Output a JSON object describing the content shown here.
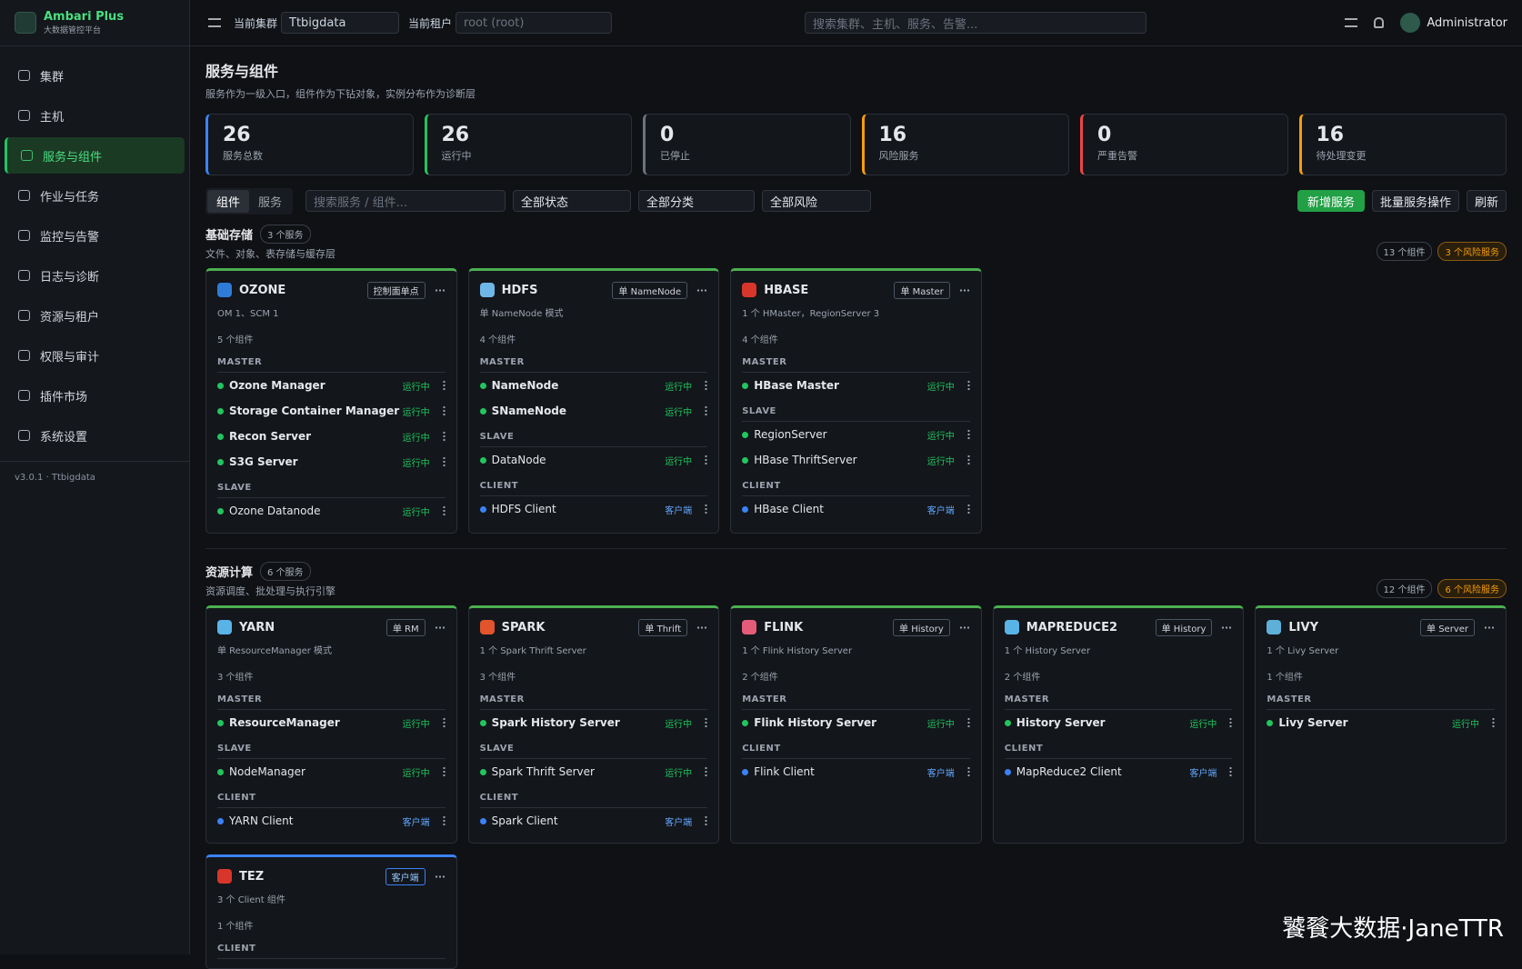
{
  "sidebar": {
    "brand": "Ambari Plus",
    "brand_sub": "大数据管控平台",
    "menu": [
      "集群",
      "主机",
      "服务与组件",
      "作业与任务",
      "监控与告警",
      "日志与诊断",
      "资源与租户",
      "权限与审计",
      "插件市场",
      "系统设置"
    ],
    "active": 2,
    "version": "v3.0.1 · Ttbigdata"
  },
  "topbar": {
    "cluster_label": "当前集群",
    "cluster": "Ttbigdata",
    "tenant_label": "当前租户",
    "tenant": "root (root)",
    "search": "搜索集群、主机、服务、告警...",
    "user": "Administrator"
  },
  "page": {
    "title": "服务与组件",
    "subtitle": "服务作为一级入口，组件作为下钻对象，实例分布作为诊断层"
  },
  "stats": [
    {
      "value": 26,
      "label": "服务总数",
      "color": "#3b82f6"
    },
    {
      "value": 26,
      "label": "运行中",
      "color": "#22c55e"
    },
    {
      "value": 0,
      "label": "已停止",
      "color": "#6b7280"
    },
    {
      "value": 16,
      "label": "风险服务",
      "color": "#f59e0b"
    },
    {
      "value": 0,
      "label": "严重告警",
      "color": "#ef4444"
    },
    {
      "value": 16,
      "label": "待处理变更",
      "color": "#f59e0b"
    }
  ],
  "toolbar": {
    "tabs": [
      "组件",
      "服务"
    ],
    "search": "搜索服务 / 组件...",
    "filters": [
      "全部状态",
      "全部分类",
      "全部风险"
    ],
    "add": "新增服务",
    "batch": "批量服务操作",
    "refresh": "刷新"
  },
  "groups": [
    {
      "title": "基础存储",
      "count": "3 个服务",
      "desc": "文件、对象、表存储与缓存层",
      "components": "13 个组件",
      "risk": "3 个风险服务",
      "services": [
        {
          "name": "OZONE",
          "badge": "控制面单点",
          "desc": "OM 1、SCM 1",
          "count": "5 个组件",
          "icon_color": "#2f7bd8",
          "accent": "#4caf50",
          "sections": [
            {
              "title": "MASTER",
              "items": [
                {
                  "name": "Ozone Manager",
                  "status": "运行中"
                },
                {
                  "name": "Storage Container Manager",
                  "status": "运行中"
                },
                {
                  "name": "Recon Server",
                  "status": "运行中"
                },
                {
                  "name": "S3G Server",
                  "status": "运行中"
                }
              ]
            },
            {
              "title": "SLAVE",
              "items": [
                {
                  "name": "Ozone Datanode",
                  "status": "运行中"
                }
              ]
            }
          ]
        },
        {
          "name": "HDFS",
          "badge": "单 NameNode",
          "desc": "单 NameNode 模式",
          "count": "4 个组件",
          "icon_color": "#6fb6e8",
          "accent": "#4caf50",
          "sections": [
            {
              "title": "MASTER",
              "items": [
                {
                  "name": "NameNode",
                  "status": "运行中"
                },
                {
                  "name": "SNameNode",
                  "status": "运行中"
                }
              ]
            },
            {
              "title": "SLAVE",
              "items": [
                {
                  "name": "DataNode",
                  "status": "运行中"
                }
              ]
            },
            {
              "title": "CLIENT",
              "items": [
                {
                  "name": "HDFS Client",
                  "status": "客户端"
                }
              ]
            }
          ]
        },
        {
          "name": "HBASE",
          "badge": "单 Master",
          "desc": "1 个 HMaster，RegionServer 3",
          "count": "4 个组件",
          "icon_color": "#d9362b",
          "accent": "#4caf50",
          "sections": [
            {
              "title": "MASTER",
              "items": [
                {
                  "name": "HBase Master",
                  "status": "运行中"
                }
              ]
            },
            {
              "title": "SLAVE",
              "items": [
                {
                  "name": "RegionServer",
                  "status": "运行中"
                },
                {
                  "name": "HBase ThriftServer",
                  "status": "运行中"
                }
              ]
            },
            {
              "title": "CLIENT",
              "items": [
                {
                  "name": "HBase Client",
                  "status": "客户端"
                }
              ]
            }
          ]
        }
      ]
    },
    {
      "title": "资源计算",
      "count": "6 个服务",
      "desc": "资源调度、批处理与执行引擎",
      "components": "12 个组件",
      "risk": "6 个风险服务",
      "services": [
        {
          "name": "YARN",
          "badge": "单 RM",
          "desc": "单 ResourceManager 模式",
          "count": "3 个组件",
          "icon_color": "#5ab3e6",
          "accent": "#4caf50",
          "sections": [
            {
              "title": "MASTER",
              "items": [
                {
                  "name": "ResourceManager",
                  "status": "运行中"
                }
              ]
            },
            {
              "title": "SLAVE",
              "items": [
                {
                  "name": "NodeManager",
                  "status": "运行中"
                }
              ]
            },
            {
              "title": "CLIENT",
              "items": [
                {
                  "name": "YARN Client",
                  "status": "客户端"
                }
              ]
            }
          ]
        },
        {
          "name": "SPARK",
          "badge": "单 Thrift",
          "desc": "1 个 Spark Thrift Server",
          "count": "3 个组件",
          "icon_color": "#e2542b",
          "accent": "#4caf50",
          "sections": [
            {
              "title": "MASTER",
              "items": [
                {
                  "name": "Spark History Server",
                  "status": "运行中"
                }
              ]
            },
            {
              "title": "SLAVE",
              "items": [
                {
                  "name": "Spark Thrift Server",
                  "status": "运行中"
                }
              ]
            },
            {
              "title": "CLIENT",
              "items": [
                {
                  "name": "Spark Client",
                  "status": "客户端"
                }
              ]
            }
          ]
        },
        {
          "name": "FLINK",
          "badge": "单 History",
          "desc": "1 个 Flink History Server",
          "count": "2 个组件",
          "icon_color": "#e55c7a",
          "accent": "#4caf50",
          "sections": [
            {
              "title": "MASTER",
              "items": [
                {
                  "name": "Flink History Server",
                  "status": "运行中"
                }
              ]
            },
            {
              "title": "CLIENT",
              "items": [
                {
                  "name": "Flink Client",
                  "status": "客户端"
                }
              ]
            }
          ]
        },
        {
          "name": "MAPREDUCE2",
          "badge": "单 History",
          "desc": "1 个 History Server",
          "count": "2 个组件",
          "icon_color": "#5ab3e6",
          "accent": "#4caf50",
          "sections": [
            {
              "title": "MASTER",
              "items": [
                {
                  "name": "History Server",
                  "status": "运行中"
                }
              ]
            },
            {
              "title": "CLIENT",
              "items": [
                {
                  "name": "MapReduce2 Client",
                  "status": "客户端"
                }
              ]
            }
          ]
        },
        {
          "name": "LIVY",
          "badge": "单 Server",
          "desc": "1 个 Livy Server",
          "count": "1 个组件",
          "icon_color": "#5fb0d9",
          "accent": "#4caf50",
          "sections": [
            {
              "title": "MASTER",
              "items": [
                {
                  "name": "Livy Server",
                  "status": "运行中"
                }
              ]
            }
          ]
        },
        {
          "name": "TEZ",
          "badge": "客户端",
          "desc": "3 个 Client 组件",
          "count": "1 个组件",
          "icon_color": "#d9362b",
          "accent": "#3b82f6",
          "sections": [
            {
              "title": "CLIENT",
              "items": []
            }
          ]
        }
      ]
    }
  ],
  "watermark": "饕餮大数据·JaneTTR"
}
